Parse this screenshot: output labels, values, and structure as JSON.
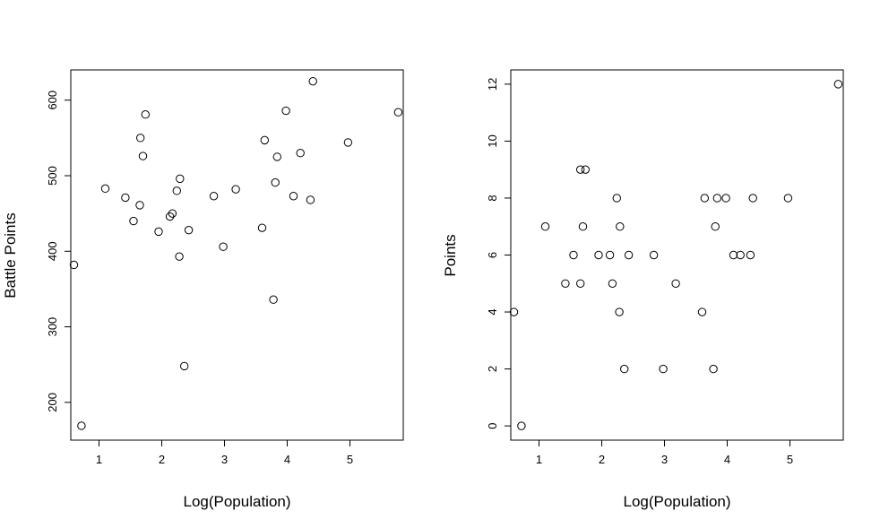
{
  "chart_data": [
    {
      "type": "scatter",
      "title": "",
      "xlabel": "Log(Population)",
      "ylabel": "Battle Points",
      "xlim": [
        0.55,
        5.85
      ],
      "ylim": [
        150,
        640
      ],
      "xticks": [
        1,
        2,
        3,
        4,
        5
      ],
      "yticks": [
        200,
        300,
        400,
        500,
        600
      ],
      "grid": false,
      "legend": "none",
      "marker": "open-circle",
      "points": [
        {
          "x": 0.6,
          "y": 382
        },
        {
          "x": 0.72,
          "y": 169
        },
        {
          "x": 1.1,
          "y": 483
        },
        {
          "x": 1.42,
          "y": 471
        },
        {
          "x": 1.55,
          "y": 440
        },
        {
          "x": 1.65,
          "y": 461
        },
        {
          "x": 1.66,
          "y": 550
        },
        {
          "x": 1.7,
          "y": 526
        },
        {
          "x": 1.74,
          "y": 581
        },
        {
          "x": 1.95,
          "y": 426
        },
        {
          "x": 2.13,
          "y": 446
        },
        {
          "x": 2.17,
          "y": 450
        },
        {
          "x": 2.24,
          "y": 480
        },
        {
          "x": 2.28,
          "y": 393
        },
        {
          "x": 2.29,
          "y": 496
        },
        {
          "x": 2.36,
          "y": 248
        },
        {
          "x": 2.43,
          "y": 428
        },
        {
          "x": 2.83,
          "y": 473
        },
        {
          "x": 2.98,
          "y": 406
        },
        {
          "x": 3.18,
          "y": 482
        },
        {
          "x": 3.6,
          "y": 431
        },
        {
          "x": 3.64,
          "y": 547
        },
        {
          "x": 3.78,
          "y": 336
        },
        {
          "x": 3.81,
          "y": 491
        },
        {
          "x": 3.84,
          "y": 525
        },
        {
          "x": 3.98,
          "y": 586
        },
        {
          "x": 4.1,
          "y": 473
        },
        {
          "x": 4.21,
          "y": 530
        },
        {
          "x": 4.37,
          "y": 468
        },
        {
          "x": 4.41,
          "y": 625
        },
        {
          "x": 4.97,
          "y": 544
        },
        {
          "x": 5.77,
          "y": 584
        }
      ]
    },
    {
      "type": "scatter",
      "title": "",
      "xlabel": "Log(Population)",
      "ylabel": "Points",
      "xlim": [
        0.55,
        5.85
      ],
      "ylim": [
        -0.5,
        12.5
      ],
      "xticks": [
        1,
        2,
        3,
        4,
        5
      ],
      "yticks": [
        0,
        2,
        4,
        6,
        8,
        10,
        12
      ],
      "grid": false,
      "legend": "none",
      "marker": "open-circle",
      "points": [
        {
          "x": 0.6,
          "y": 4
        },
        {
          "x": 0.72,
          "y": 0
        },
        {
          "x": 1.1,
          "y": 7
        },
        {
          "x": 1.42,
          "y": 5
        },
        {
          "x": 1.55,
          "y": 6
        },
        {
          "x": 1.66,
          "y": 5
        },
        {
          "x": 1.66,
          "y": 9
        },
        {
          "x": 1.7,
          "y": 7
        },
        {
          "x": 1.74,
          "y": 9
        },
        {
          "x": 1.95,
          "y": 6
        },
        {
          "x": 2.13,
          "y": 6
        },
        {
          "x": 2.17,
          "y": 5
        },
        {
          "x": 2.24,
          "y": 8
        },
        {
          "x": 2.28,
          "y": 4
        },
        {
          "x": 2.29,
          "y": 7
        },
        {
          "x": 2.36,
          "y": 2
        },
        {
          "x": 2.43,
          "y": 6
        },
        {
          "x": 2.83,
          "y": 6
        },
        {
          "x": 2.98,
          "y": 2
        },
        {
          "x": 3.18,
          "y": 5
        },
        {
          "x": 3.6,
          "y": 4
        },
        {
          "x": 3.64,
          "y": 8
        },
        {
          "x": 3.78,
          "y": 2
        },
        {
          "x": 3.81,
          "y": 7
        },
        {
          "x": 3.84,
          "y": 8
        },
        {
          "x": 3.98,
          "y": 8
        },
        {
          "x": 4.1,
          "y": 6
        },
        {
          "x": 4.21,
          "y": 6
        },
        {
          "x": 4.37,
          "y": 6
        },
        {
          "x": 4.41,
          "y": 8
        },
        {
          "x": 4.97,
          "y": 8
        },
        {
          "x": 5.77,
          "y": 12
        }
      ]
    }
  ]
}
